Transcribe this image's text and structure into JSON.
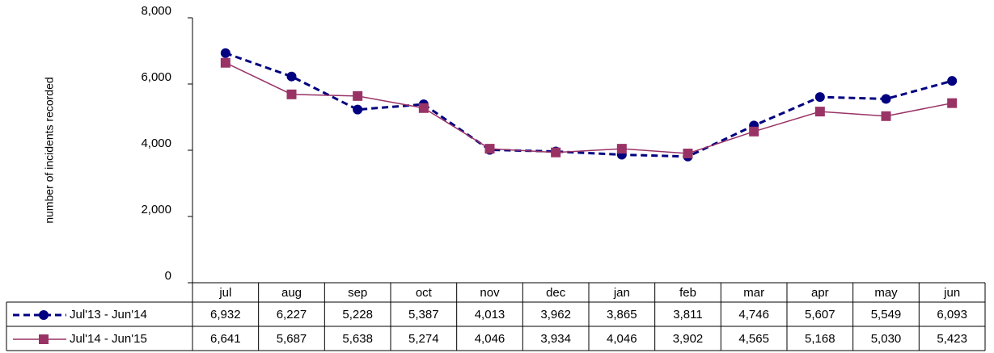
{
  "chart_data": {
    "type": "line",
    "y_label": "number of incidents recorded",
    "categories": [
      "jul",
      "aug",
      "sep",
      "oct",
      "nov",
      "dec",
      "jan",
      "feb",
      "mar",
      "apr",
      "may",
      "jun"
    ],
    "series": [
      {
        "name": "Jul'13 - Jun'14",
        "color": "#000080",
        "dashed": true,
        "marker": "circle",
        "values": [
          6932,
          6227,
          5228,
          5387,
          4013,
          3962,
          3865,
          3811,
          4746,
          5607,
          5549,
          6093
        ],
        "value_labels": [
          "6,932",
          "6,227",
          "5,228",
          "5,387",
          "4,013",
          "3,962",
          "3,865",
          "3,811",
          "4,746",
          "5,607",
          "5,549",
          "6,093"
        ]
      },
      {
        "name": "Jul'14 - Jun'15",
        "color": "#993366",
        "dashed": false,
        "marker": "square",
        "values": [
          6641,
          5687,
          5638,
          5274,
          4046,
          3934,
          4046,
          3902,
          4565,
          5168,
          5030,
          5423
        ],
        "value_labels": [
          "6,641",
          "5,687",
          "5,638",
          "5,274",
          "4,046",
          "3,934",
          "4,046",
          "3,902",
          "4,565",
          "5,168",
          "5,030",
          "5,423"
        ]
      }
    ],
    "ylim": [
      0,
      8000
    ],
    "yticks": [
      0,
      {
        "value": 2000,
        "label": "2,000"
      },
      {
        "value": 4000,
        "label": "4,000"
      },
      {
        "value": 6000,
        "label": "6,000"
      },
      {
        "value": 8000,
        "label": "8,000"
      }
    ],
    "grid": false
  }
}
